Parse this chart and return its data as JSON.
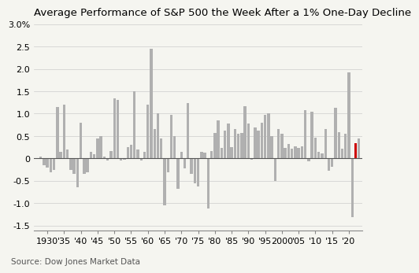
{
  "title": "Average Performance of S&P 500 the Week After a 1% One-Day Decline",
  "source": "Source: Dow Jones Market Data",
  "ylabel_values": [
    "3.0%",
    "2.5",
    "2.0",
    "1.5",
    "1.0",
    "0.5",
    "0",
    "-0.5",
    "-1.0",
    "-1.5"
  ],
  "ylim": [
    -1.6,
    3.0
  ],
  "yticks": [
    3.0,
    2.5,
    2.0,
    1.5,
    1.0,
    0.5,
    0.0,
    -0.5,
    -1.0,
    -1.5
  ],
  "ytick_labels": [
    "3.0%",
    "2.5",
    "2.0",
    "1.5",
    "1.0",
    "0.5",
    "0",
    "-0.5",
    "-1.0",
    "-1.5"
  ],
  "xtick_labels": [
    "1930",
    "'35",
    "'40",
    "'45",
    "'50",
    "'55",
    "'60",
    "'65",
    "'70",
    "'75",
    "'80",
    "'85",
    "'90",
    "'95",
    "2000",
    "'05",
    "'10",
    "'15",
    "'20"
  ],
  "years": [
    1928,
    1929,
    1930,
    1931,
    1932,
    1933,
    1934,
    1935,
    1936,
    1937,
    1938,
    1939,
    1940,
    1941,
    1942,
    1943,
    1944,
    1945,
    1946,
    1947,
    1948,
    1949,
    1950,
    1951,
    1952,
    1953,
    1954,
    1955,
    1956,
    1957,
    1958,
    1959,
    1960,
    1961,
    1962,
    1963,
    1964,
    1965,
    1966,
    1967,
    1968,
    1969,
    1970,
    1971,
    1972,
    1973,
    1974,
    1975,
    1976,
    1977,
    1978,
    1979,
    1980,
    1981,
    1982,
    1983,
    1984,
    1985,
    1986,
    1987,
    1988,
    1989,
    1990,
    1991,
    1992,
    1993,
    1994,
    1995,
    1996,
    1997,
    1998,
    1999,
    2000,
    2001,
    2002,
    2003,
    2004,
    2005,
    2006,
    2007,
    2008,
    2009,
    2010,
    2011,
    2012,
    2013,
    2014,
    2015,
    2016,
    2017,
    2018,
    2019,
    2020,
    2021,
    2022,
    2023
  ],
  "values": [
    0.05,
    -0.15,
    -0.2,
    -0.3,
    -0.25,
    1.15,
    0.15,
    1.2,
    0.2,
    -0.25,
    -0.35,
    -0.65,
    0.8,
    -0.35,
    -0.3,
    0.15,
    0.1,
    0.45,
    0.5,
    0.05,
    -0.05,
    0.17,
    1.35,
    1.3,
    -0.05,
    -0.02,
    0.25,
    0.3,
    1.5,
    0.2,
    -0.05,
    0.15,
    1.2,
    2.45,
    0.65,
    1.0,
    0.45,
    -1.05,
    -0.3,
    0.97,
    0.5,
    -0.67,
    0.15,
    -0.22,
    1.23,
    -0.35,
    -0.55,
    -0.62,
    0.15,
    0.13,
    -1.12,
    0.17,
    0.57,
    0.85,
    0.24,
    0.63,
    0.78,
    0.25,
    0.65,
    0.56,
    0.57,
    1.17,
    0.78,
    -0.02,
    0.7,
    0.62,
    0.8,
    0.97,
    1.0,
    0.5,
    -0.5,
    0.65,
    0.55,
    0.24,
    0.32,
    0.22,
    0.27,
    0.23,
    0.27,
    1.08,
    -0.07,
    1.05,
    0.46,
    0.15,
    0.12,
    0.65,
    -0.27,
    -0.18,
    1.13,
    0.58,
    0.22,
    0.55,
    1.93,
    -1.3,
    0.35,
    0.45
  ],
  "bar_color_default": "#b0b0b0",
  "bar_color_highlight": "#cc0000",
  "highlight_year": 2022,
  "background_color": "#f5f5f0",
  "gridline_color": "#cccccc",
  "zero_line_color": "#555555",
  "title_fontsize": 9.5,
  "tick_fontsize": 8.0,
  "source_fontsize": 7.5
}
